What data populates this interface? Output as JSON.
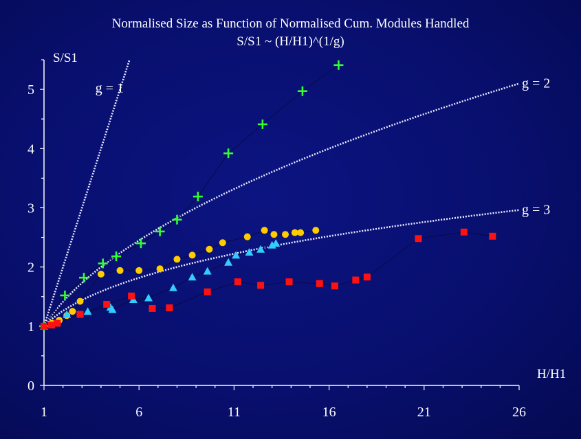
{
  "chart_data": {
    "type": "scatter",
    "title": "Normalised Size as Function of Normalised Cum. Modules Handled",
    "subtitle": "S/S1 ~ (H/H1)^(1/g)",
    "xlabel": "H/H1",
    "ylabel": "S/S1",
    "xlim": [
      1,
      26
    ],
    "ylim": [
      0,
      5.5
    ],
    "xticks": [
      1,
      6,
      11,
      16,
      21,
      26
    ],
    "yticks": [
      0,
      1,
      2,
      3,
      4,
      5
    ],
    "xtick_labels": [
      "1",
      "6",
      "11",
      "16",
      "21",
      "26"
    ],
    "ytick_labels": [
      "0",
      "1",
      "2",
      "3",
      "4",
      "5"
    ],
    "grid": false,
    "legend": "none",
    "series": [
      {
        "marker": "plus",
        "color": "#33ff33",
        "x": [
          1.0,
          2.1,
          3.1,
          4.1,
          4.8,
          6.1,
          7.1,
          8.0,
          9.1,
          10.7,
          12.5,
          14.6,
          16.5
        ],
        "y": [
          1.0,
          1.52,
          1.82,
          2.06,
          2.18,
          2.4,
          2.6,
          2.8,
          3.19,
          3.92,
          4.41,
          4.97,
          5.41
        ]
      },
      {
        "marker": "circle",
        "color": "#ffcc00",
        "x": [
          1.0,
          1.4,
          1.8,
          2.2,
          2.5,
          2.9,
          4.0,
          5.0,
          6.0,
          7.1,
          8.0,
          8.8,
          9.7,
          10.4,
          11.7,
          12.6,
          13.1,
          13.7,
          14.2,
          14.5,
          15.3
        ],
        "y": [
          1.0,
          1.05,
          1.1,
          1.18,
          1.25,
          1.42,
          1.88,
          1.94,
          1.94,
          1.97,
          2.13,
          2.2,
          2.3,
          2.41,
          2.51,
          2.62,
          2.55,
          2.55,
          2.58,
          2.58,
          2.62
        ],
        "values_note": ""
      },
      {
        "marker": "triangle",
        "color": "#33ccff",
        "x": [
          1.0,
          2.2,
          3.3,
          4.5,
          4.6,
          5.7,
          6.5,
          7.8,
          8.8,
          9.6,
          10.7,
          11.1,
          11.8,
          12.4,
          13.0,
          13.2
        ],
        "y": [
          1.0,
          1.2,
          1.25,
          1.32,
          1.28,
          1.45,
          1.48,
          1.65,
          1.83,
          1.93,
          2.08,
          2.2,
          2.25,
          2.3,
          2.37,
          2.4
        ]
      },
      {
        "marker": "square",
        "color": "#ff1111",
        "x": [
          1.0,
          1.4,
          1.7,
          2.9,
          4.3,
          5.6,
          6.7,
          7.6,
          9.6,
          11.2,
          12.4,
          13.9,
          15.5,
          16.3,
          17.4,
          18.0,
          20.7,
          23.1,
          24.6
        ],
        "y": [
          1.0,
          1.02,
          1.05,
          1.2,
          1.37,
          1.51,
          1.3,
          1.31,
          1.58,
          1.75,
          1.69,
          1.75,
          1.72,
          1.68,
          1.78,
          1.83,
          2.48,
          2.59,
          2.52
        ]
      }
    ],
    "reference_curves": [
      {
        "label": "g = 1",
        "g": 1,
        "x_end": 5.5
      },
      {
        "label": "g = 2",
        "g": 2,
        "x_end": 26
      },
      {
        "label": "g = 3",
        "g": 3,
        "x_end": 26
      }
    ]
  }
}
